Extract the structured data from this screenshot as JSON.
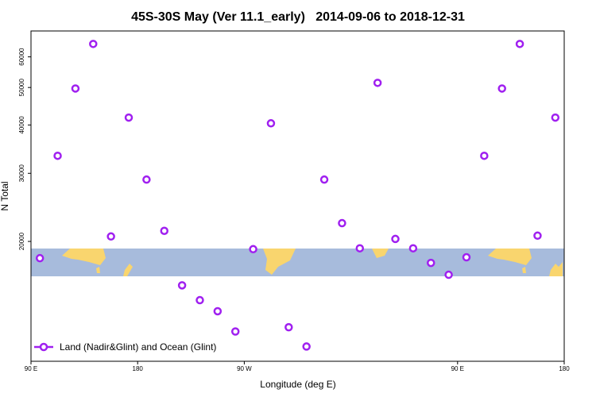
{
  "chart_data": {
    "type": "scatter",
    "title": "45S-30S May (Ver 11.1_early)   2014-09-06 to 2018-12-31",
    "x_label": "Longitude (deg E)",
    "y_label": "N Total",
    "xlim": [
      90,
      540
    ],
    "ylim": [
      9800,
      70000
    ],
    "log_y": true,
    "xticks": [
      {
        "value": 90,
        "label": "90 E"
      },
      180,
      {
        "value": 270,
        "label": "90 W"
      },
      {
        "value": 450,
        "label": "90 E"
      },
      {
        "value": 540,
        "label": "180"
      }
    ],
    "yticks": [
      20000,
      30000,
      40000,
      50000,
      60000
    ],
    "legend": "bottom-left",
    "series": [
      {
        "name": "Land (Nadir&Glint) and Ocean (Glint)",
        "color": "#a020f0",
        "x": [
          97.5,
          112.5,
          127.5,
          142.5,
          157.5,
          172.5,
          187.5,
          202.5,
          217.5,
          232.5,
          247.5,
          262.5,
          277.5,
          292.5,
          307.5,
          322.5,
          337.5,
          352.5,
          367.5,
          382.5,
          397.5,
          412.5,
          427.5,
          442.5,
          457.5,
          472.5,
          487.5,
          502.5,
          517.5,
          532.5
        ],
        "values": [
          18100,
          33300,
          49700,
          64800,
          20600,
          41800,
          28900,
          21300,
          15400,
          14100,
          13200,
          11700,
          19100,
          40400,
          12000,
          10700,
          28900,
          22300,
          19200,
          51400,
          20300,
          19200,
          17600,
          16400,
          18200,
          33300,
          49700,
          64800,
          20700,
          41800
        ]
      }
    ]
  }
}
